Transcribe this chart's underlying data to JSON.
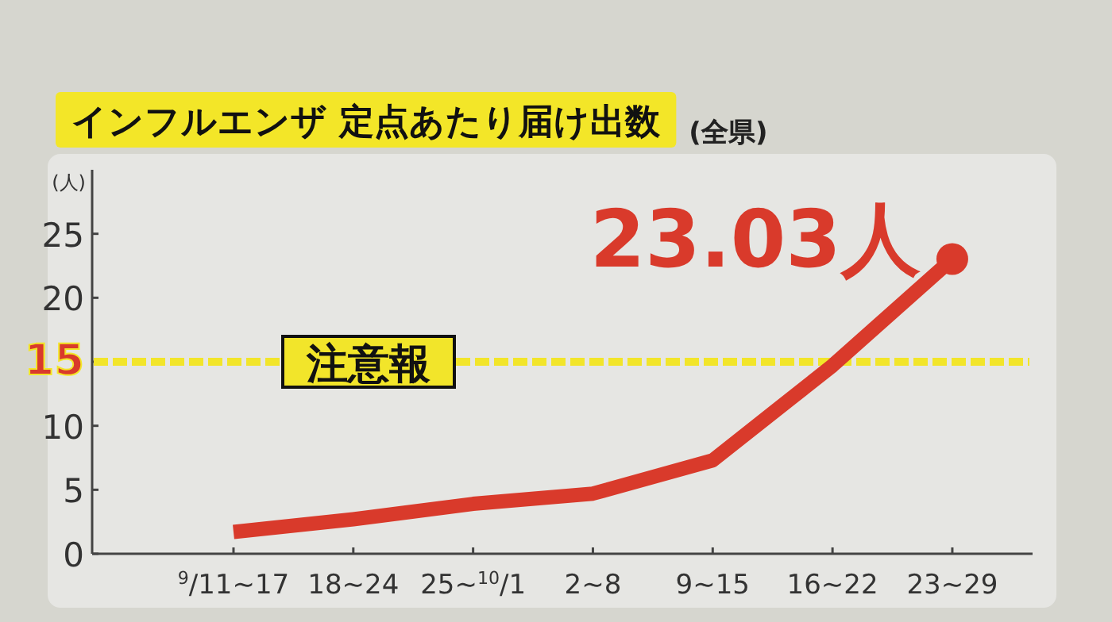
{
  "chart_data": {
    "type": "line",
    "title": "インフルエンザ 定点あたり届け出数",
    "subtitle": "(全県)",
    "ylabel": "(人)",
    "categories": [
      "$^{9}$/11~17",
      "18~24",
      "25~$^{10}$/1",
      "2~8",
      "9~15",
      "16~22",
      "23~29"
    ],
    "series": [
      {
        "color": "#d93a2b",
        "values": [
          1.7,
          2.7,
          3.9,
          4.7,
          7.3,
          14.7,
          23.03
        ]
      }
    ],
    "ylim": [
      0,
      30
    ],
    "yticks": [
      0,
      5,
      10,
      15,
      20,
      25
    ],
    "grid": false,
    "marker": "none",
    "line_style": "solid",
    "ref_lines": [
      {
        "axis": "y",
        "value": 15,
        "label": "注意報",
        "color": "#f2e52a",
        "line_style": "dashed"
      }
    ],
    "annotations": [
      {
        "text": "23.03人",
        "x": "23~29",
        "y": 23.03
      }
    ]
  }
}
